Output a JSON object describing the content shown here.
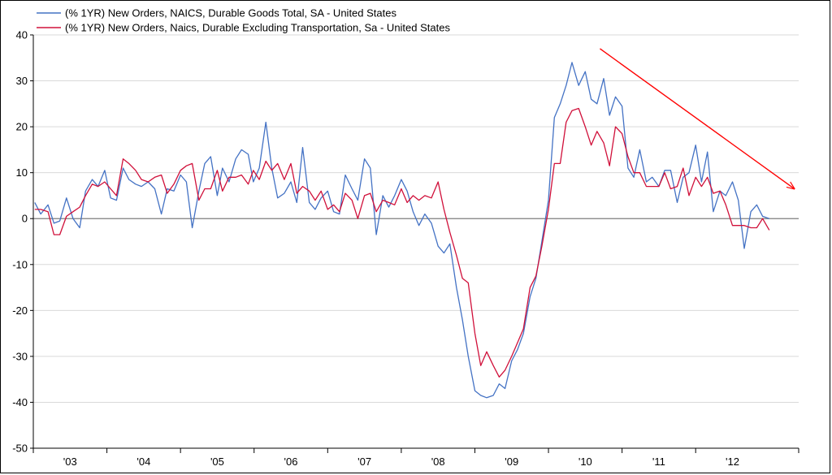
{
  "chart_data": {
    "type": "line",
    "title": "",
    "xlabel": "",
    "ylabel": "",
    "ylim": [
      -50,
      40
    ],
    "yticks": [
      40,
      30,
      20,
      10,
      0,
      -10,
      -20,
      -30,
      -40,
      -50
    ],
    "ytick_labels": [
      "40",
      "30",
      "20",
      "10",
      "0",
      "-10",
      "-20",
      "-30",
      "-40",
      "-50"
    ],
    "x_range": [
      2002.5,
      2012.9
    ],
    "xtick_labels": [
      {
        "label": "'03",
        "x": 2003.0
      },
      {
        "label": "'04",
        "x": 2004.0
      },
      {
        "label": "'05",
        "x": 2005.0
      },
      {
        "label": "'06",
        "x": 2006.0
      },
      {
        "label": "'07",
        "x": 2007.0
      },
      {
        "label": "'08",
        "x": 2008.0
      },
      {
        "label": "'09",
        "x": 2009.0
      },
      {
        "label": "'10",
        "x": 2010.0
      },
      {
        "label": "'11",
        "x": 2011.0
      },
      {
        "label": "'12",
        "x": 2012.0
      }
    ],
    "grid": true,
    "legend_position": "top-left",
    "series": [
      {
        "name": "(% 1YR) New Orders, NAICS, Durable Goods Total, SA - United States",
        "color": "#4472c4",
        "points": [
          [
            2002.52,
            3.5
          ],
          [
            2002.6,
            1.0
          ],
          [
            2002.7,
            3.0
          ],
          [
            2002.78,
            -1.0
          ],
          [
            2002.86,
            -0.5
          ],
          [
            2002.95,
            4.5
          ],
          [
            2003.04,
            0.0
          ],
          [
            2003.13,
            -2.0
          ],
          [
            2003.21,
            6.0
          ],
          [
            2003.3,
            8.5
          ],
          [
            2003.38,
            7.0
          ],
          [
            2003.47,
            10.5
          ],
          [
            2003.55,
            4.5
          ],
          [
            2003.63,
            4.0
          ],
          [
            2003.72,
            11.0
          ],
          [
            2003.8,
            8.5
          ],
          [
            2003.89,
            7.5
          ],
          [
            2003.97,
            7.0
          ],
          [
            2004.06,
            8.0
          ],
          [
            2004.15,
            6.5
          ],
          [
            2004.24,
            1.0
          ],
          [
            2004.32,
            6.5
          ],
          [
            2004.41,
            6.0
          ],
          [
            2004.5,
            9.5
          ],
          [
            2004.58,
            8.0
          ],
          [
            2004.66,
            -2.0
          ],
          [
            2004.75,
            6.0
          ],
          [
            2004.83,
            12.0
          ],
          [
            2004.91,
            13.5
          ],
          [
            2005.0,
            5.0
          ],
          [
            2005.07,
            11.0
          ],
          [
            2005.16,
            8.0
          ],
          [
            2005.25,
            13.0
          ],
          [
            2005.33,
            15.0
          ],
          [
            2005.42,
            14.0
          ],
          [
            2005.49,
            8.0
          ],
          [
            2005.57,
            11.0
          ],
          [
            2005.66,
            21.0
          ],
          [
            2005.74,
            11.0
          ],
          [
            2005.82,
            4.5
          ],
          [
            2005.91,
            5.5
          ],
          [
            2006.0,
            8.0
          ],
          [
            2006.08,
            3.5
          ],
          [
            2006.16,
            15.5
          ],
          [
            2006.25,
            3.5
          ],
          [
            2006.33,
            2.0
          ],
          [
            2006.41,
            4.5
          ],
          [
            2006.5,
            6.0
          ],
          [
            2006.58,
            1.5
          ],
          [
            2006.66,
            1.0
          ],
          [
            2006.74,
            9.5
          ],
          [
            2006.83,
            6.5
          ],
          [
            2006.91,
            4.0
          ],
          [
            2007.0,
            13.0
          ],
          [
            2007.08,
            11.0
          ],
          [
            2007.16,
            -3.5
          ],
          [
            2007.25,
            5.0
          ],
          [
            2007.33,
            2.5
          ],
          [
            2007.41,
            5.0
          ],
          [
            2007.5,
            8.5
          ],
          [
            2007.58,
            6.0
          ],
          [
            2007.66,
            1.5
          ],
          [
            2007.74,
            -1.5
          ],
          [
            2007.82,
            1.0
          ],
          [
            2007.91,
            -1.0
          ],
          [
            2008.0,
            -6.0
          ],
          [
            2008.08,
            -7.5
          ],
          [
            2008.16,
            -5.5
          ],
          [
            2008.25,
            -15.0
          ],
          [
            2008.33,
            -22.0
          ],
          [
            2008.41,
            -30.0
          ],
          [
            2008.5,
            -37.5
          ],
          [
            2008.58,
            -38.5
          ],
          [
            2008.66,
            -39.0
          ],
          [
            2008.75,
            -38.5
          ],
          [
            2008.83,
            -36.0
          ],
          [
            2008.91,
            -37.0
          ],
          [
            2009.0,
            -31.0
          ],
          [
            2009.08,
            -28.5
          ],
          [
            2009.16,
            -25.0
          ],
          [
            2009.25,
            -17.0
          ],
          [
            2009.33,
            -13.0
          ],
          [
            2009.41,
            -5.0
          ],
          [
            2009.5,
            4.0
          ],
          [
            2009.58,
            22.0
          ],
          [
            2009.66,
            25.0
          ],
          [
            2009.74,
            29.0
          ],
          [
            2009.82,
            34.0
          ],
          [
            2009.91,
            29.0
          ],
          [
            2010.0,
            32.0
          ],
          [
            2010.08,
            26.0
          ],
          [
            2010.16,
            25.0
          ],
          [
            2010.25,
            30.5
          ],
          [
            2010.33,
            22.5
          ],
          [
            2010.41,
            26.5
          ],
          [
            2010.5,
            24.5
          ],
          [
            2010.58,
            11.0
          ],
          [
            2010.66,
            9.0
          ],
          [
            2010.74,
            15.0
          ],
          [
            2010.83,
            8.0
          ],
          [
            2010.91,
            9.0
          ],
          [
            2011.0,
            7.0
          ],
          [
            2011.08,
            10.5
          ],
          [
            2011.16,
            10.5
          ],
          [
            2011.25,
            3.5
          ],
          [
            2011.33,
            9.0
          ],
          [
            2011.41,
            10.0
          ],
          [
            2011.5,
            16.0
          ],
          [
            2011.58,
            8.0
          ],
          [
            2011.66,
            14.5
          ],
          [
            2011.74,
            1.5
          ],
          [
            2011.83,
            6.0
          ],
          [
            2011.91,
            5.0
          ],
          [
            2012.0,
            8.0
          ],
          [
            2012.08,
            4.0
          ],
          [
            2012.16,
            -6.5
          ],
          [
            2012.25,
            1.5
          ],
          [
            2012.33,
            3.0
          ],
          [
            2012.41,
            0.5
          ],
          [
            2012.5,
            0.0
          ]
        ]
      },
      {
        "name": "(% 1YR) New Orders, Naics, Durable Excluding Transportation, Sa - United States",
        "color": "#d0103a",
        "points": [
          [
            2002.52,
            2.0
          ],
          [
            2002.6,
            2.0
          ],
          [
            2002.7,
            1.5
          ],
          [
            2002.78,
            -3.5
          ],
          [
            2002.86,
            -3.5
          ],
          [
            2002.95,
            0.5
          ],
          [
            2003.04,
            1.5
          ],
          [
            2003.13,
            2.5
          ],
          [
            2003.21,
            5.0
          ],
          [
            2003.3,
            7.5
          ],
          [
            2003.38,
            7.0
          ],
          [
            2003.47,
            8.0
          ],
          [
            2003.55,
            6.5
          ],
          [
            2003.63,
            5.0
          ],
          [
            2003.72,
            13.0
          ],
          [
            2003.8,
            12.0
          ],
          [
            2003.89,
            10.5
          ],
          [
            2003.97,
            8.5
          ],
          [
            2004.06,
            8.0
          ],
          [
            2004.15,
            9.0
          ],
          [
            2004.24,
            9.5
          ],
          [
            2004.32,
            5.5
          ],
          [
            2004.41,
            7.5
          ],
          [
            2004.5,
            10.5
          ],
          [
            2004.58,
            11.5
          ],
          [
            2004.66,
            12.0
          ],
          [
            2004.75,
            4.0
          ],
          [
            2004.83,
            6.5
          ],
          [
            2004.91,
            6.5
          ],
          [
            2005.0,
            10.5
          ],
          [
            2005.07,
            6.0
          ],
          [
            2005.16,
            9.0
          ],
          [
            2005.25,
            9.0
          ],
          [
            2005.33,
            9.5
          ],
          [
            2005.42,
            7.5
          ],
          [
            2005.49,
            10.5
          ],
          [
            2005.57,
            8.5
          ],
          [
            2005.66,
            12.5
          ],
          [
            2005.74,
            10.5
          ],
          [
            2005.82,
            12.0
          ],
          [
            2005.91,
            8.5
          ],
          [
            2006.0,
            12.0
          ],
          [
            2006.08,
            5.5
          ],
          [
            2006.16,
            7.0
          ],
          [
            2006.25,
            6.0
          ],
          [
            2006.33,
            4.0
          ],
          [
            2006.41,
            6.0
          ],
          [
            2006.5,
            2.0
          ],
          [
            2006.58,
            3.0
          ],
          [
            2006.66,
            1.5
          ],
          [
            2006.74,
            5.5
          ],
          [
            2006.83,
            4.0
          ],
          [
            2006.91,
            0.0
          ],
          [
            2007.0,
            5.0
          ],
          [
            2007.08,
            5.5
          ],
          [
            2007.16,
            1.5
          ],
          [
            2007.25,
            4.0
          ],
          [
            2007.33,
            3.5
          ],
          [
            2007.41,
            3.0
          ],
          [
            2007.5,
            6.5
          ],
          [
            2007.58,
            3.5
          ],
          [
            2007.66,
            5.0
          ],
          [
            2007.74,
            4.0
          ],
          [
            2007.82,
            5.0
          ],
          [
            2007.91,
            4.5
          ],
          [
            2008.0,
            8.0
          ],
          [
            2008.08,
            2.0
          ],
          [
            2008.16,
            -3.0
          ],
          [
            2008.25,
            -8.0
          ],
          [
            2008.33,
            -13.0
          ],
          [
            2008.41,
            -14.0
          ],
          [
            2008.5,
            -25.0
          ],
          [
            2008.58,
            -32.0
          ],
          [
            2008.66,
            -29.0
          ],
          [
            2008.75,
            -32.0
          ],
          [
            2008.83,
            -34.5
          ],
          [
            2008.91,
            -33.0
          ],
          [
            2009.0,
            -30.0
          ],
          [
            2009.08,
            -27.0
          ],
          [
            2009.16,
            -24.0
          ],
          [
            2009.25,
            -15.0
          ],
          [
            2009.33,
            -12.5
          ],
          [
            2009.41,
            -6.0
          ],
          [
            2009.5,
            2.0
          ],
          [
            2009.58,
            12.0
          ],
          [
            2009.66,
            12.0
          ],
          [
            2009.74,
            21.0
          ],
          [
            2009.82,
            23.5
          ],
          [
            2009.91,
            24.0
          ],
          [
            2010.0,
            20.0
          ],
          [
            2010.08,
            16.0
          ],
          [
            2010.16,
            19.0
          ],
          [
            2010.25,
            16.5
          ],
          [
            2010.33,
            11.5
          ],
          [
            2010.41,
            20.0
          ],
          [
            2010.5,
            18.5
          ],
          [
            2010.58,
            13.5
          ],
          [
            2010.66,
            10.0
          ],
          [
            2010.74,
            10.0
          ],
          [
            2010.83,
            7.0
          ],
          [
            2010.91,
            7.0
          ],
          [
            2011.0,
            7.0
          ],
          [
            2011.08,
            10.0
          ],
          [
            2011.16,
            6.5
          ],
          [
            2011.25,
            7.0
          ],
          [
            2011.33,
            11.0
          ],
          [
            2011.41,
            5.0
          ],
          [
            2011.5,
            9.0
          ],
          [
            2011.58,
            7.0
          ],
          [
            2011.66,
            9.0
          ],
          [
            2011.74,
            5.5
          ],
          [
            2011.83,
            6.0
          ],
          [
            2011.91,
            3.0
          ],
          [
            2012.0,
            -1.5
          ],
          [
            2012.08,
            -1.5
          ],
          [
            2012.16,
            -1.5
          ],
          [
            2012.25,
            -2.0
          ],
          [
            2012.33,
            -2.0
          ],
          [
            2012.41,
            0.0
          ],
          [
            2012.5,
            -2.5
          ]
        ]
      }
    ],
    "annotations": [
      {
        "type": "arrow",
        "color": "#ff0000",
        "from": [
          2010.2,
          37.0
        ],
        "to": [
          2012.84,
          6.5
        ]
      }
    ]
  }
}
